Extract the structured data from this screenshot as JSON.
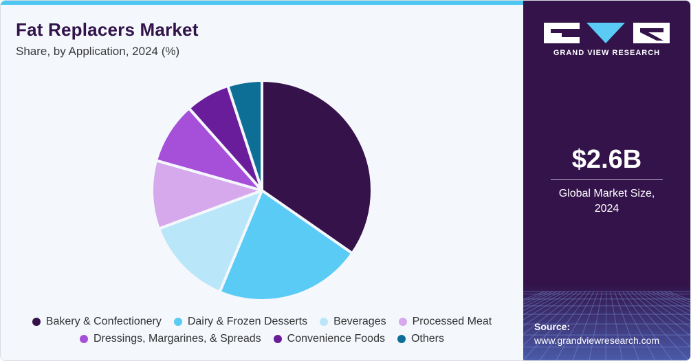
{
  "header": {
    "title": "Fat Replacers Market",
    "subtitle": "Share, by Application, 2024 (%)"
  },
  "sidebar": {
    "brand": "GRAND VIEW RESEARCH",
    "market_size": "$2.6B",
    "market_label_line1": "Global Market Size,",
    "market_label_line2": "2024",
    "source_label": "Source:",
    "source_url": "www.grandviewresearch.com"
  },
  "colors": {
    "accent_bar": "#4dc7f2",
    "panel": "#33134a"
  },
  "chart_data": {
    "type": "pie",
    "title": "Fat Replacers Market",
    "subtitle": "Share, by Application, 2024 (%)",
    "start_angle_deg": 0,
    "direction": "clockwise",
    "legend_position": "bottom",
    "slices": [
      {
        "label": "Bakery & Confectionery",
        "value": 34.5,
        "color": "#36124a"
      },
      {
        "label": "Dairy & Frozen Desserts",
        "value": 21.5,
        "color": "#5acbf5"
      },
      {
        "label": "Beverages",
        "value": 13.0,
        "color": "#b9e6f8"
      },
      {
        "label": "Processed Meat",
        "value": 10.0,
        "color": "#d6a8ec"
      },
      {
        "label": "Dressings, Margarines, & Spreads",
        "value": 9.0,
        "color": "#a64fd8"
      },
      {
        "label": "Convenience Foods",
        "value": 6.5,
        "color": "#6a1d9a"
      },
      {
        "label": "Others",
        "value": 5.0,
        "color": "#0e6f96"
      }
    ]
  }
}
